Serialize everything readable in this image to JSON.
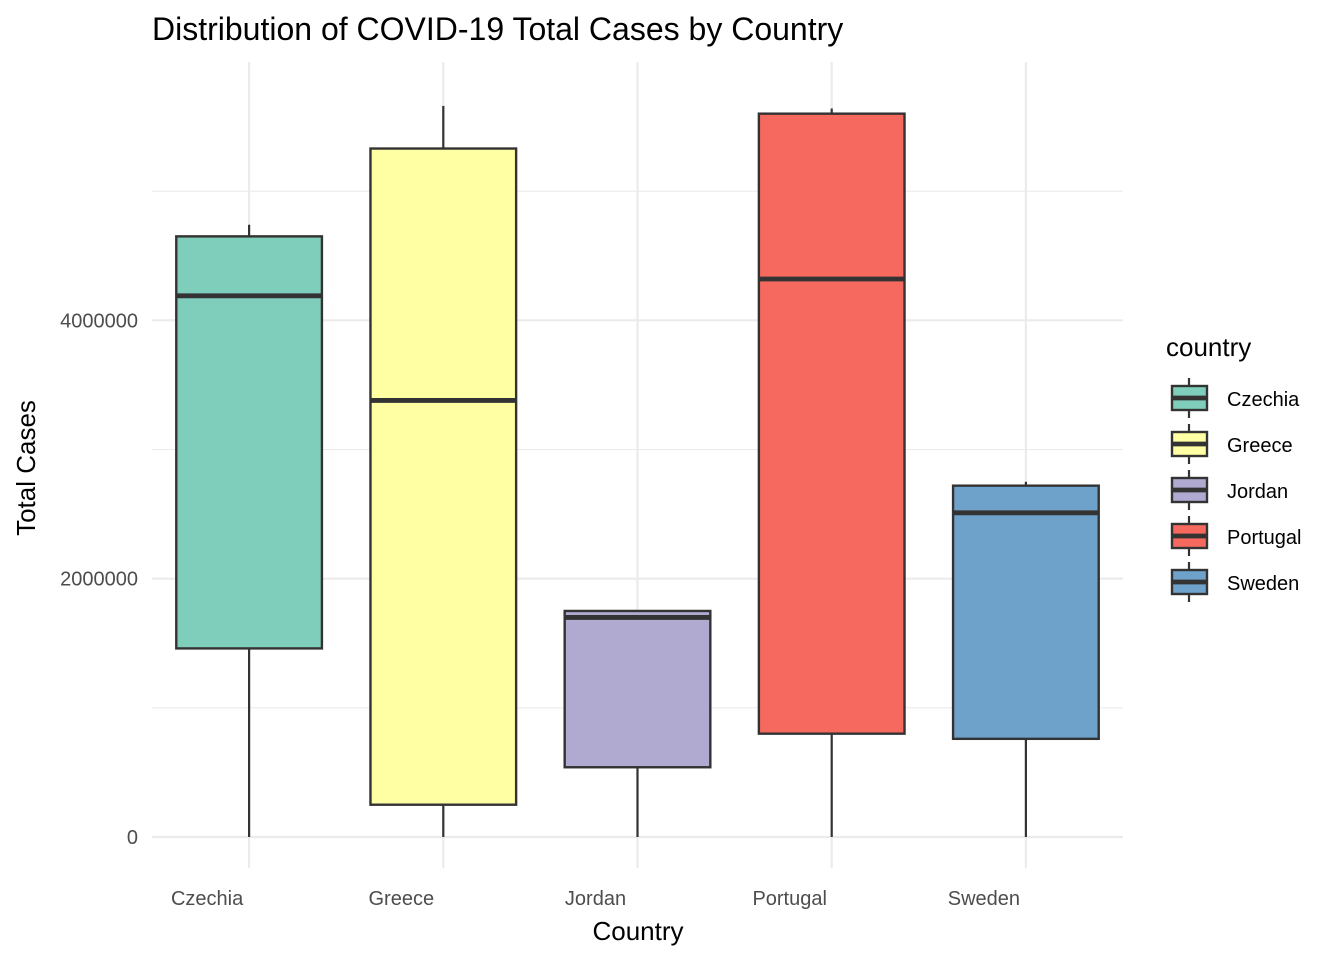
{
  "chart_data": {
    "type": "boxplot",
    "title": "Distribution of COVID-19 Total Cases by Country",
    "xlabel": "Country",
    "ylabel": "Total Cases",
    "ylim": [
      -240000,
      6000000
    ],
    "y_ticks": [
      0,
      2000000,
      4000000
    ],
    "y_tick_labels": [
      "0",
      "2000000",
      "4000000"
    ],
    "y_minor_ticks": [
      1000000,
      3000000,
      5000000
    ],
    "grid": true,
    "legend": {
      "title": "country",
      "position": "right"
    },
    "categories": [
      "Czechia",
      "Greece",
      "Jordan",
      "Portugal",
      "Sweden"
    ],
    "boxes": [
      {
        "name": "Czechia",
        "color": "#7fcdbb",
        "min": 0,
        "q1": 1460000,
        "median": 4190000,
        "q3": 4650000,
        "max": 4740000
      },
      {
        "name": "Greece",
        "color": "#ffffa3",
        "min": 0,
        "q1": 250000,
        "median": 3380000,
        "q3": 5330000,
        "max": 5660000
      },
      {
        "name": "Jordan",
        "color": "#b0aad0",
        "min": 0,
        "q1": 540000,
        "median": 1700000,
        "q3": 1750000,
        "max": 1750000
      },
      {
        "name": "Portugal",
        "color": "#f6695f",
        "min": 0,
        "q1": 800000,
        "median": 4320000,
        "q3": 5600000,
        "max": 5640000
      },
      {
        "name": "Sweden",
        "color": "#6ea2ca",
        "min": 0,
        "q1": 760000,
        "median": 2510000,
        "q3": 2720000,
        "max": 2750000
      }
    ]
  }
}
